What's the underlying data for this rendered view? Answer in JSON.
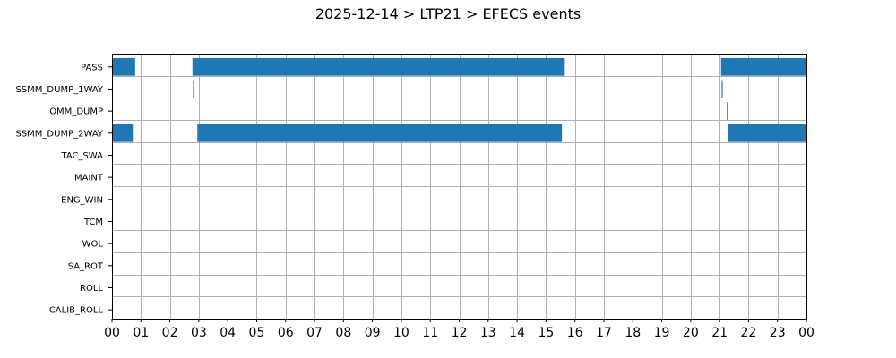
{
  "chart_data": {
    "type": "timeline",
    "title": "2025-12-14 > LTP21 > EFECS events",
    "xlabel": "",
    "ylabel": "",
    "x_range_hours": [
      0,
      24
    ],
    "x_tick_labels": [
      "00",
      "01",
      "02",
      "03",
      "04",
      "05",
      "06",
      "07",
      "08",
      "09",
      "10",
      "11",
      "12",
      "13",
      "14",
      "15",
      "16",
      "17",
      "18",
      "19",
      "20",
      "21",
      "22",
      "23",
      "00"
    ],
    "grid": true,
    "bar_color": "#1f77b4",
    "categories": [
      "PASS",
      "SSMM_DUMP_1WAY",
      "OMM_DUMP",
      "SSMM_DUMP_2WAY",
      "TAC_SWA",
      "MAINT",
      "ENG_WIN",
      "TCM",
      "WOL",
      "SA_ROT",
      "ROLL",
      "CALIB_ROLL"
    ],
    "events": [
      {
        "category": "PASS",
        "start": 0.0,
        "end": 0.8
      },
      {
        "category": "PASS",
        "start": 2.78,
        "end": 15.65
      },
      {
        "category": "PASS",
        "start": 21.05,
        "end": 24.0
      },
      {
        "category": "SSMM_DUMP_1WAY",
        "start": 2.8,
        "end": 2.85
      },
      {
        "category": "SSMM_DUMP_1WAY",
        "start": 21.07,
        "end": 21.1
      },
      {
        "category": "OMM_DUMP",
        "start": 21.25,
        "end": 21.3
      },
      {
        "category": "SSMM_DUMP_2WAY",
        "start": 0.0,
        "end": 0.72
      },
      {
        "category": "SSMM_DUMP_2WAY",
        "start": 2.95,
        "end": 15.55
      },
      {
        "category": "SSMM_DUMP_2WAY",
        "start": 21.3,
        "end": 24.0
      }
    ]
  }
}
